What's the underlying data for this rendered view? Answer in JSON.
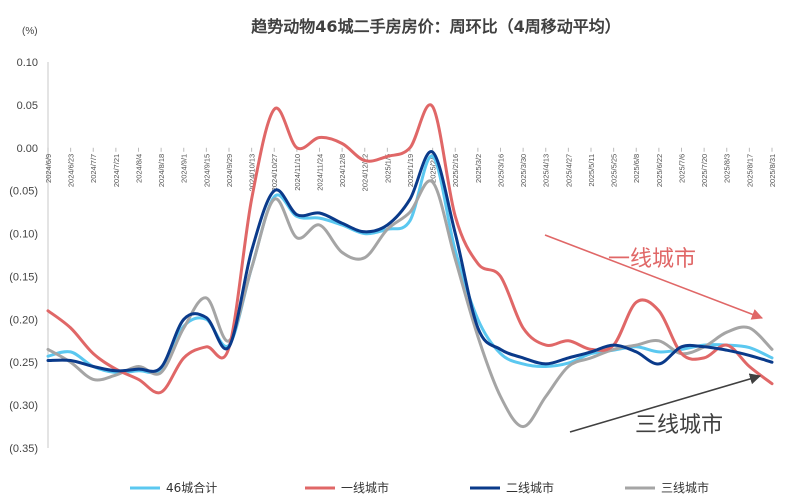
{
  "chart_data": {
    "type": "line",
    "title": "趋势动物46城二手房房价：周环比（4周移动平均）",
    "unit_label": "(%)",
    "ylim": [
      -0.35,
      0.1
    ],
    "yticks": [
      0.1,
      0.05,
      0.0,
      -0.05,
      -0.1,
      -0.15,
      -0.2,
      -0.25,
      -0.3,
      -0.35
    ],
    "ytick_labels": [
      "0.10",
      "0.05",
      "0.00",
      "(0.05)",
      "(0.10)",
      "(0.15)",
      "(0.20)",
      "(0.25)",
      "(0.30)",
      "(0.35)"
    ],
    "x_labels": [
      "2024/6/9",
      "2024/6/23",
      "2024/7/7",
      "2024/7/21",
      "2024/8/4",
      "2024/8/18",
      "2024/9/1",
      "2024/9/15",
      "2024/9/29",
      "2024/10/13",
      "2024/10/27",
      "2024/11/10",
      "2024/11/24",
      "2024/12/8",
      "2024/12/22",
      "2025/1/5",
      "2025/1/19",
      "2025/2/2",
      "2025/2/16",
      "2025/3/2",
      "2025/3/16",
      "2025/3/30",
      "2025/4/13",
      "2025/4/27",
      "2025/5/11",
      "2025/5/25",
      "2025/6/8",
      "2025/6/22",
      "2025/7/6",
      "2025/7/20",
      "2025/8/3",
      "2025/8/17",
      "2025/8/31"
    ],
    "grid": false,
    "legend_position": "bottom",
    "series": [
      {
        "name": "46城合计",
        "color": "#5bc8f0",
        "values": [
          -0.243,
          -0.238,
          -0.255,
          -0.262,
          -0.26,
          -0.258,
          -0.208,
          -0.2,
          -0.23,
          -0.14,
          -0.057,
          -0.08,
          -0.082,
          -0.09,
          -0.1,
          -0.095,
          -0.085,
          -0.01,
          -0.12,
          -0.2,
          -0.24,
          -0.252,
          -0.255,
          -0.251,
          -0.24,
          -0.236,
          -0.232,
          -0.238,
          -0.235,
          -0.23,
          -0.23,
          -0.233,
          -0.245
        ]
      },
      {
        "name": "一线城市",
        "color": "#e06767",
        "values": [
          -0.19,
          -0.21,
          -0.24,
          -0.258,
          -0.27,
          -0.285,
          -0.245,
          -0.232,
          -0.233,
          -0.06,
          0.045,
          0.0,
          0.012,
          0.005,
          -0.015,
          -0.01,
          0.0,
          0.048,
          -0.08,
          -0.135,
          -0.15,
          -0.21,
          -0.23,
          -0.225,
          -0.235,
          -0.23,
          -0.18,
          -0.19,
          -0.24,
          -0.245,
          -0.23,
          -0.255,
          -0.275
        ]
      },
      {
        "name": "二线城市",
        "color": "#0a3a8a",
        "values": [
          -0.248,
          -0.248,
          -0.255,
          -0.26,
          -0.258,
          -0.256,
          -0.2,
          -0.198,
          -0.232,
          -0.12,
          -0.05,
          -0.078,
          -0.076,
          -0.088,
          -0.098,
          -0.09,
          -0.06,
          -0.005,
          -0.1,
          -0.21,
          -0.235,
          -0.245,
          -0.252,
          -0.245,
          -0.238,
          -0.23,
          -0.238,
          -0.252,
          -0.232,
          -0.232,
          -0.236,
          -0.242,
          -0.25
        ]
      },
      {
        "name": "三线城市",
        "color": "#a5a5a5",
        "values": [
          -0.235,
          -0.25,
          -0.27,
          -0.265,
          -0.255,
          -0.262,
          -0.21,
          -0.175,
          -0.225,
          -0.14,
          -0.06,
          -0.105,
          -0.09,
          -0.122,
          -0.128,
          -0.095,
          -0.075,
          -0.04,
          -0.13,
          -0.22,
          -0.29,
          -0.325,
          -0.29,
          -0.255,
          -0.245,
          -0.235,
          -0.23,
          -0.225,
          -0.24,
          -0.232,
          -0.215,
          -0.21,
          -0.235
        ]
      }
    ],
    "annotations": [
      {
        "text": "一线城市",
        "color": "#e06767"
      },
      {
        "text": "三线城市",
        "color": "#404040"
      }
    ]
  }
}
